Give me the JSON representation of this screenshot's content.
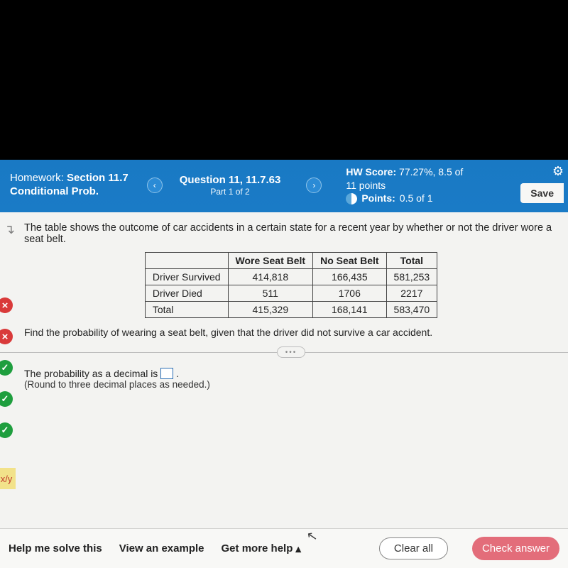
{
  "header": {
    "hw_label": "Homework:",
    "hw_title_line1": "Section 11.7",
    "hw_title_line2": "Conditional Prob.",
    "question_label": "Question 11, 11.7.63",
    "question_part": "Part 1 of 2",
    "hw_score_label": "HW Score:",
    "hw_score_value": "77.27%, 8.5 of",
    "hw_score_line2": "11 points",
    "points_label": "Points:",
    "points_value": "0.5 of 1",
    "save_label": "Save"
  },
  "problem": {
    "intro": "The table shows the outcome of car accidents in a certain state for a recent year by whether or not the driver wore a seat belt.",
    "table": {
      "col_headers": [
        "",
        "Wore Seat Belt",
        "No Seat Belt",
        "Total"
      ],
      "rows": [
        [
          "Driver Survived",
          "414,818",
          "166,435",
          "581,253"
        ],
        [
          "Driver Died",
          "511",
          "1706",
          "2217"
        ],
        [
          "Total",
          "415,329",
          "168,141",
          "583,470"
        ]
      ]
    },
    "question": "Find the probability of wearing a seat belt, given that the driver did not survive a car accident.",
    "answer_prefix": "The probability as a decimal is ",
    "answer_suffix": ".",
    "round_note": "(Round to three decimal places as needed.)"
  },
  "footer": {
    "help": "Help me solve this",
    "example": "View an example",
    "more": "Get more help",
    "clear": "Clear all",
    "check": "Check answer"
  },
  "partial_label": "x/y"
}
